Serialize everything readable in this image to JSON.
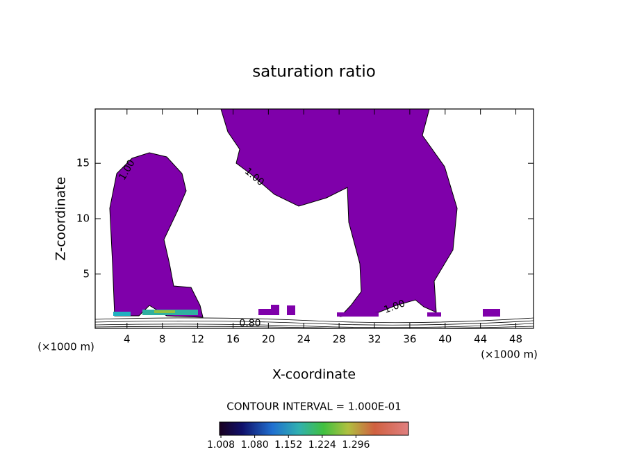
{
  "chart_data": {
    "type": "contour",
    "title": "saturation ratio",
    "x_label": "X-coordinate",
    "y_label": "Z-coordinate",
    "y_unit": "(×1000 m)",
    "x_unit": "(×1000 m)",
    "xlim": [
      0.4,
      50
    ],
    "ylim": [
      0.1,
      19.9
    ],
    "xticks": [
      4,
      8,
      12,
      16,
      20,
      24,
      28,
      32,
      36,
      40,
      44,
      48
    ],
    "yticks": [
      5,
      10,
      15
    ],
    "fill_color": "#7f00aa",
    "contour_labels": [
      "1.00",
      "1.00",
      "1.00",
      "0.80"
    ],
    "contour_interval_label": "CONTOUR INTERVAL = 1.000E-01",
    "colorbar": {
      "lim": [
        1.005,
        1.408
      ],
      "ticks": [
        1.008,
        {
          "value": 1.08,
          "label": "1.080"
        },
        1.152,
        1.224,
        1.296
      ]
    }
  }
}
